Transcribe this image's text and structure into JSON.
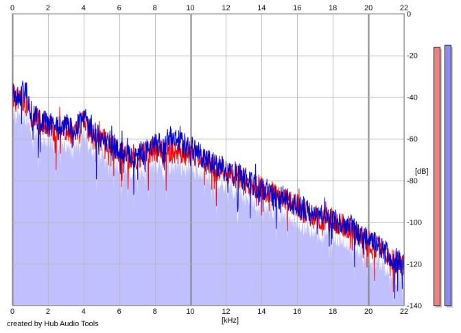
{
  "credit": "created by Hub Audio Tools",
  "chart_data": {
    "type": "line",
    "xlabel": "[kHz]",
    "ylabel": "[dB]",
    "xlim": [
      0,
      22
    ],
    "ylim": [
      -140,
      0
    ],
    "x_ticks": [
      0,
      2,
      4,
      6,
      8,
      10,
      12,
      14,
      16,
      18,
      20,
      22
    ],
    "y_ticks": [
      0,
      -20,
      -40,
      -60,
      -80,
      -100,
      -120,
      -140
    ],
    "grid": true,
    "fill_color": "#c0c0ff",
    "series": [
      {
        "color": "#ff0000",
        "x": [
          0.0,
          0.25,
          0.5,
          0.75,
          1.0,
          1.5,
          2.0,
          2.5,
          3.0,
          3.5,
          4.0,
          4.5,
          5.0,
          5.5,
          6.0,
          6.5,
          7.0,
          7.5,
          8.0,
          8.5,
          9.0,
          9.5,
          10.0,
          10.5,
          11.0,
          11.5,
          12.0,
          12.5,
          13.0,
          13.5,
          14.0,
          14.5,
          15.0,
          15.5,
          16.0,
          16.5,
          17.0,
          17.5,
          18.0,
          18.5,
          19.0,
          19.5,
          20.0,
          20.5,
          21.0,
          21.5,
          22.0
        ],
        "y": [
          -38,
          -42,
          -40,
          -44,
          -48,
          -52,
          -54,
          -56,
          -55,
          -58,
          -52,
          -58,
          -60,
          -63,
          -66,
          -68,
          -69,
          -67,
          -65,
          -67,
          -66,
          -68,
          -67,
          -70,
          -71,
          -74,
          -76,
          -78,
          -80,
          -83,
          -84,
          -86,
          -88,
          -90,
          -92,
          -95,
          -97,
          -98,
          -99,
          -101,
          -103,
          -107,
          -109,
          -112,
          -116,
          -119,
          -120
        ]
      },
      {
        "color": "#0000cc",
        "x": [
          0.0,
          0.25,
          0.5,
          0.75,
          1.0,
          1.5,
          2.0,
          2.5,
          3.0,
          3.5,
          4.0,
          4.5,
          5.0,
          5.5,
          6.0,
          6.5,
          7.0,
          7.5,
          8.0,
          8.5,
          9.0,
          9.5,
          10.0,
          10.5,
          11.0,
          11.5,
          12.0,
          12.5,
          13.0,
          13.5,
          14.0,
          14.5,
          15.0,
          15.5,
          16.0,
          16.5,
          17.0,
          17.5,
          18.0,
          18.5,
          19.0,
          19.5,
          20.0,
          20.5,
          21.0,
          21.5,
          22.0
        ],
        "y": [
          -37,
          -40,
          -39,
          -36,
          -47,
          -51,
          -53,
          -55,
          -54,
          -56,
          -50,
          -57,
          -59,
          -62,
          -65,
          -67,
          -68,
          -66,
          -63,
          -63,
          -58,
          -62,
          -64,
          -69,
          -71,
          -73,
          -75,
          -77,
          -79,
          -82,
          -84,
          -86,
          -88,
          -89,
          -92,
          -94,
          -96,
          -98,
          -99,
          -100,
          -102,
          -106,
          -109,
          -111,
          -115,
          -118,
          -120
        ]
      }
    ],
    "meters": [
      {
        "color": "#f08080",
        "value": -16
      },
      {
        "color": "#8c8cf0",
        "value": -15
      }
    ]
  }
}
